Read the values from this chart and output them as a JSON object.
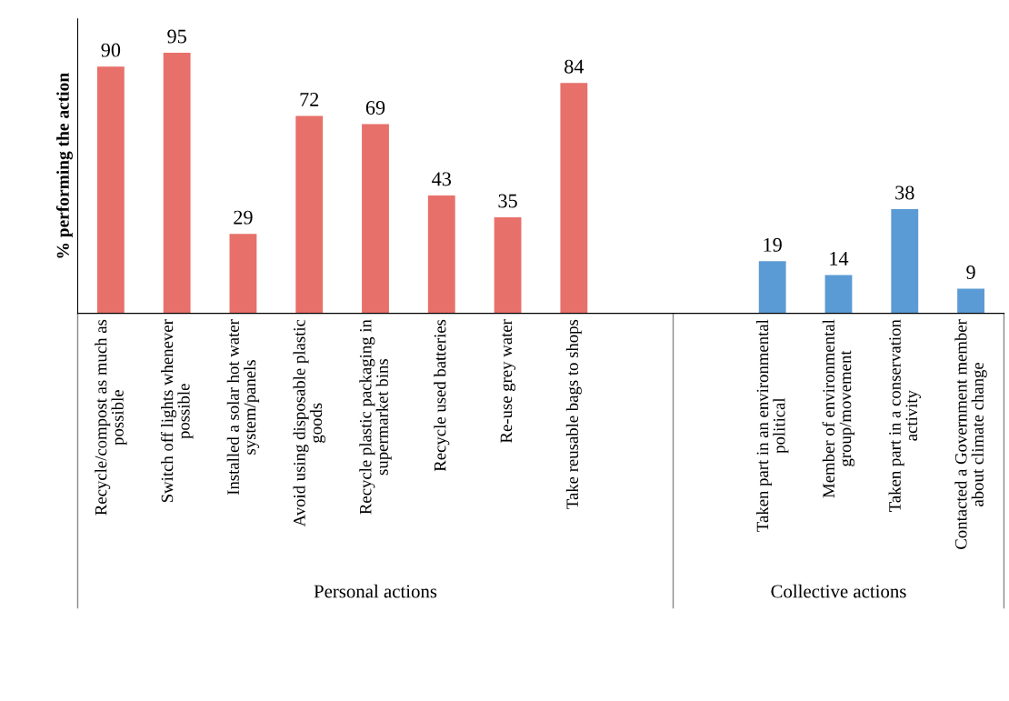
{
  "chart_data": {
    "type": "bar",
    "ylabel": "% performing the action",
    "categories": [
      "Recycle/compost as much as possible",
      "Switch off lights whenever possible",
      "Installed a solar hot water system/panels",
      "Avoid using disposable plastic goods",
      "Recycle plastic packaging in supermarket bins",
      "Recycle used batteries",
      "Re-use grey water",
      "Take reusable bags to shops",
      null,
      null,
      "Taken part in an environmental political",
      "Member of environmental group/movement",
      "Taken part in a conservation activity",
      "Contacted a Government member about climate change"
    ],
    "values": [
      90,
      95,
      29,
      72,
      69,
      43,
      35,
      84,
      null,
      null,
      19,
      14,
      38,
      9
    ],
    "colors": [
      "#e8706a",
      "#e8706a",
      "#e8706a",
      "#e8706a",
      "#e8706a",
      "#e8706a",
      "#e8706a",
      "#e8706a",
      "#e8706a",
      "#e8706a",
      "#5b9bd5",
      "#5b9bd5",
      "#5b9bd5",
      "#5b9bd5"
    ],
    "data_labels": true,
    "annotations": [
      "Personal actions",
      "Collective actions"
    ]
  }
}
